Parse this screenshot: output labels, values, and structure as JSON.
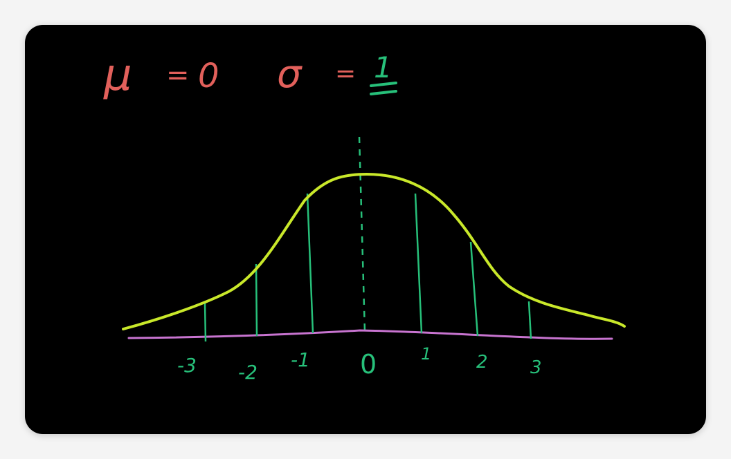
{
  "colors": {
    "formula": "#e2605b",
    "curve": "#c9e82a",
    "axis": "#c874d0",
    "ticks": "#27c07a",
    "board": "#000000",
    "frame": "#f4f4f4"
  },
  "formula": {
    "mu_symbol": "μ",
    "mu_equals": "=",
    "mu_value": "0",
    "sigma_symbol": "σ",
    "sigma_equals": "=",
    "sigma_value": "1"
  },
  "axis_labels": [
    "-3",
    "-2",
    "-1",
    "0",
    "1",
    "2",
    "3"
  ],
  "distribution": {
    "mean": 0,
    "std_dev": 1,
    "marked_values": [
      -3,
      -2,
      -1,
      0,
      1,
      2,
      3
    ]
  }
}
